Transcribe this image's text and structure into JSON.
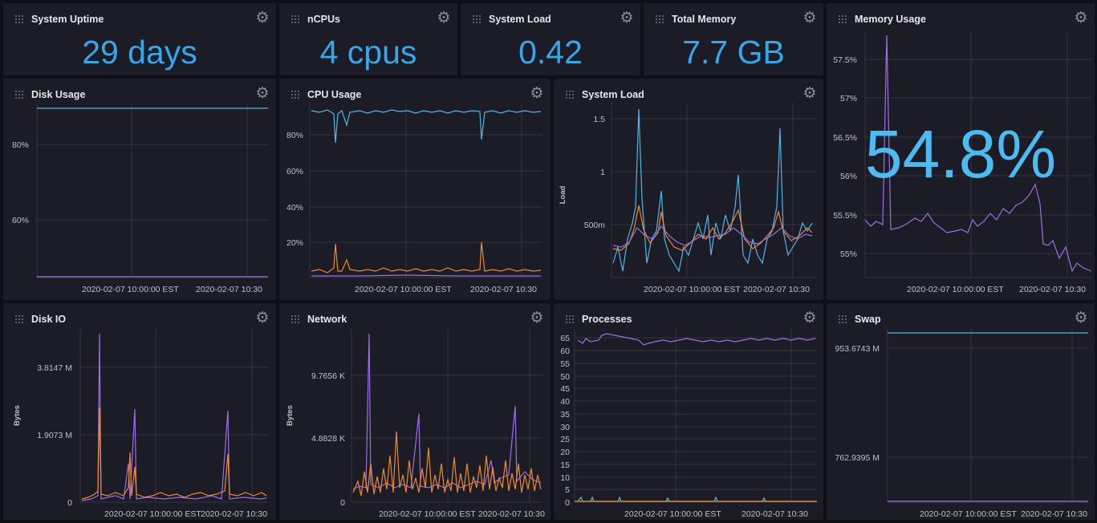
{
  "colors": {
    "blue": "#4fb6ee",
    "orange": "#f08a2a",
    "purple": "#9d6ee8",
    "grid": "#34353f",
    "bg": "#1c1c26"
  },
  "icons": {
    "gear": "gear-icon",
    "grip": "drag-handle-icon"
  },
  "stats": {
    "uptime": {
      "title": "System Uptime",
      "value": "29 days"
    },
    "ncpus": {
      "title": "nCPUs",
      "value": "4 cpus"
    },
    "load": {
      "title": "System Load",
      "value": "0.42"
    },
    "memory": {
      "title": "Total Memory",
      "value": "7.7 GB"
    }
  },
  "panels": {
    "memory_usage": {
      "title": "Memory Usage",
      "value": "54.8%",
      "yticks": [
        "57.5%",
        "57%",
        "56.5%",
        "56%",
        "55.5%",
        "55%"
      ],
      "xticks": [
        "2020-02-07 10:00:00 EST",
        "2020-02-07 10:30"
      ]
    },
    "disk_usage": {
      "title": "Disk Usage",
      "yticks": [
        "80%",
        "60%"
      ],
      "xticks": [
        "2020-02-07 10:00:00 EST",
        "2020-02-07 10:30"
      ]
    },
    "cpu_usage": {
      "title": "CPU Usage",
      "yticks": [
        "80%",
        "60%",
        "40%",
        "20%"
      ],
      "xticks": [
        "2020-02-07 10:00:00 EST",
        "2020-02-07 10:30"
      ]
    },
    "system_load": {
      "title": "System Load",
      "ylabel": "Load",
      "yticks": [
        "1.5",
        "1",
        "500m"
      ],
      "xticks": [
        "2020-02-07 10:00:00 EST",
        "2020-02-07 10:30"
      ]
    },
    "disk_io": {
      "title": "Disk IO",
      "ylabel": "Bytes",
      "yticks": [
        "3.8147 M",
        "1.9073 M",
        "0"
      ],
      "xticks": [
        "2020-02-07 10:00:00 EST",
        "2020-02-07 10:30"
      ]
    },
    "network": {
      "title": "Network",
      "ylabel": "Bytes",
      "yticks": [
        "9.7656 K",
        "4.8828 K",
        "0"
      ],
      "xticks": [
        "2020-02-07 10:00:00 EST",
        "2020-02-07 10:30"
      ]
    },
    "processes": {
      "title": "Processes",
      "yticks": [
        "65",
        "60",
        "55",
        "50",
        "45",
        "40",
        "35",
        "30",
        "25",
        "20",
        "15",
        "10",
        "5",
        "0"
      ],
      "xticks": [
        "2020-02-07 10:00:00 EST",
        "2020-02-07 10:30"
      ]
    },
    "swap": {
      "title": "Swap",
      "yticks": [
        "953.6743 M",
        "762.9395 M"
      ],
      "xticks": [
        "2020-02-07 10:00:00 EST",
        "2020-02-07 10:30"
      ]
    }
  }
}
